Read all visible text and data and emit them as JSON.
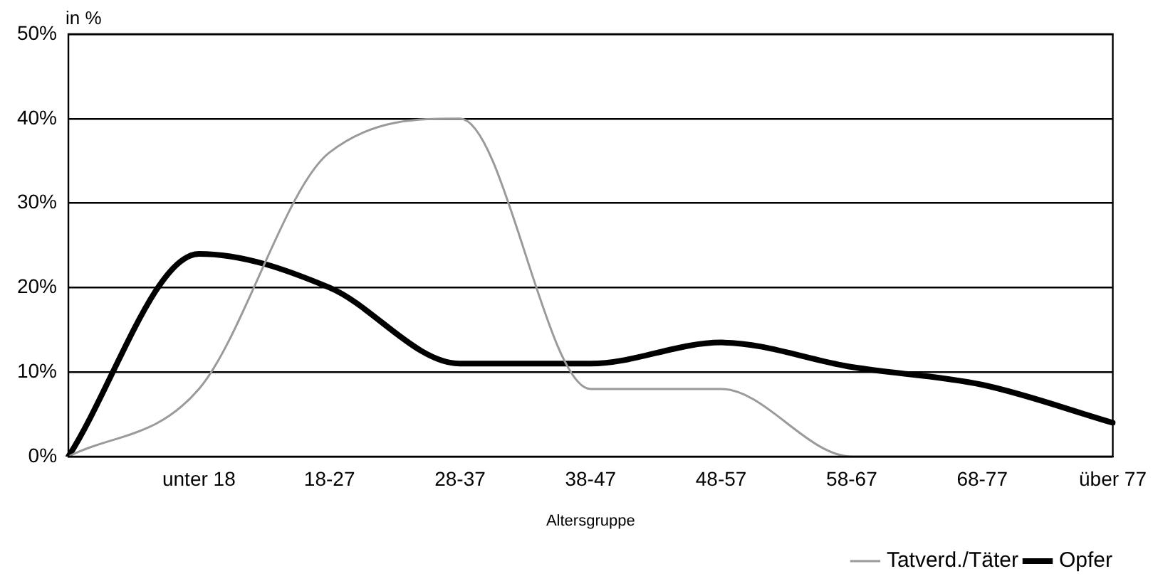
{
  "chart_data": {
    "type": "line",
    "ylabel": "in %",
    "xlabel": "Altersgruppe",
    "categories": [
      null,
      "unter 18",
      "18-27",
      "28-37",
      "38-47",
      "48-57",
      "58-67",
      "68-77",
      "über 77"
    ],
    "series": [
      {
        "name": "Tatverd./Täter",
        "color": "#9a9a9a",
        "values": [
          0,
          8,
          36,
          40,
          8,
          8,
          0,
          0,
          0
        ]
      },
      {
        "name": "Opfer",
        "color": "#000000",
        "values": [
          0,
          24,
          20,
          11,
          11,
          13.5,
          10.6,
          8.5,
          4
        ]
      }
    ],
    "ylim": [
      0,
      50
    ],
    "yticks": [
      {
        "value": 0,
        "label": "0%"
      },
      {
        "value": 10,
        "label": "10%"
      },
      {
        "value": 20,
        "label": "20%"
      },
      {
        "value": 30,
        "label": "30%"
      },
      {
        "value": 40,
        "label": "40%"
      },
      {
        "value": 50,
        "label": "50%"
      }
    ],
    "grid": "y",
    "legend": "bottom right",
    "marker": "none"
  }
}
